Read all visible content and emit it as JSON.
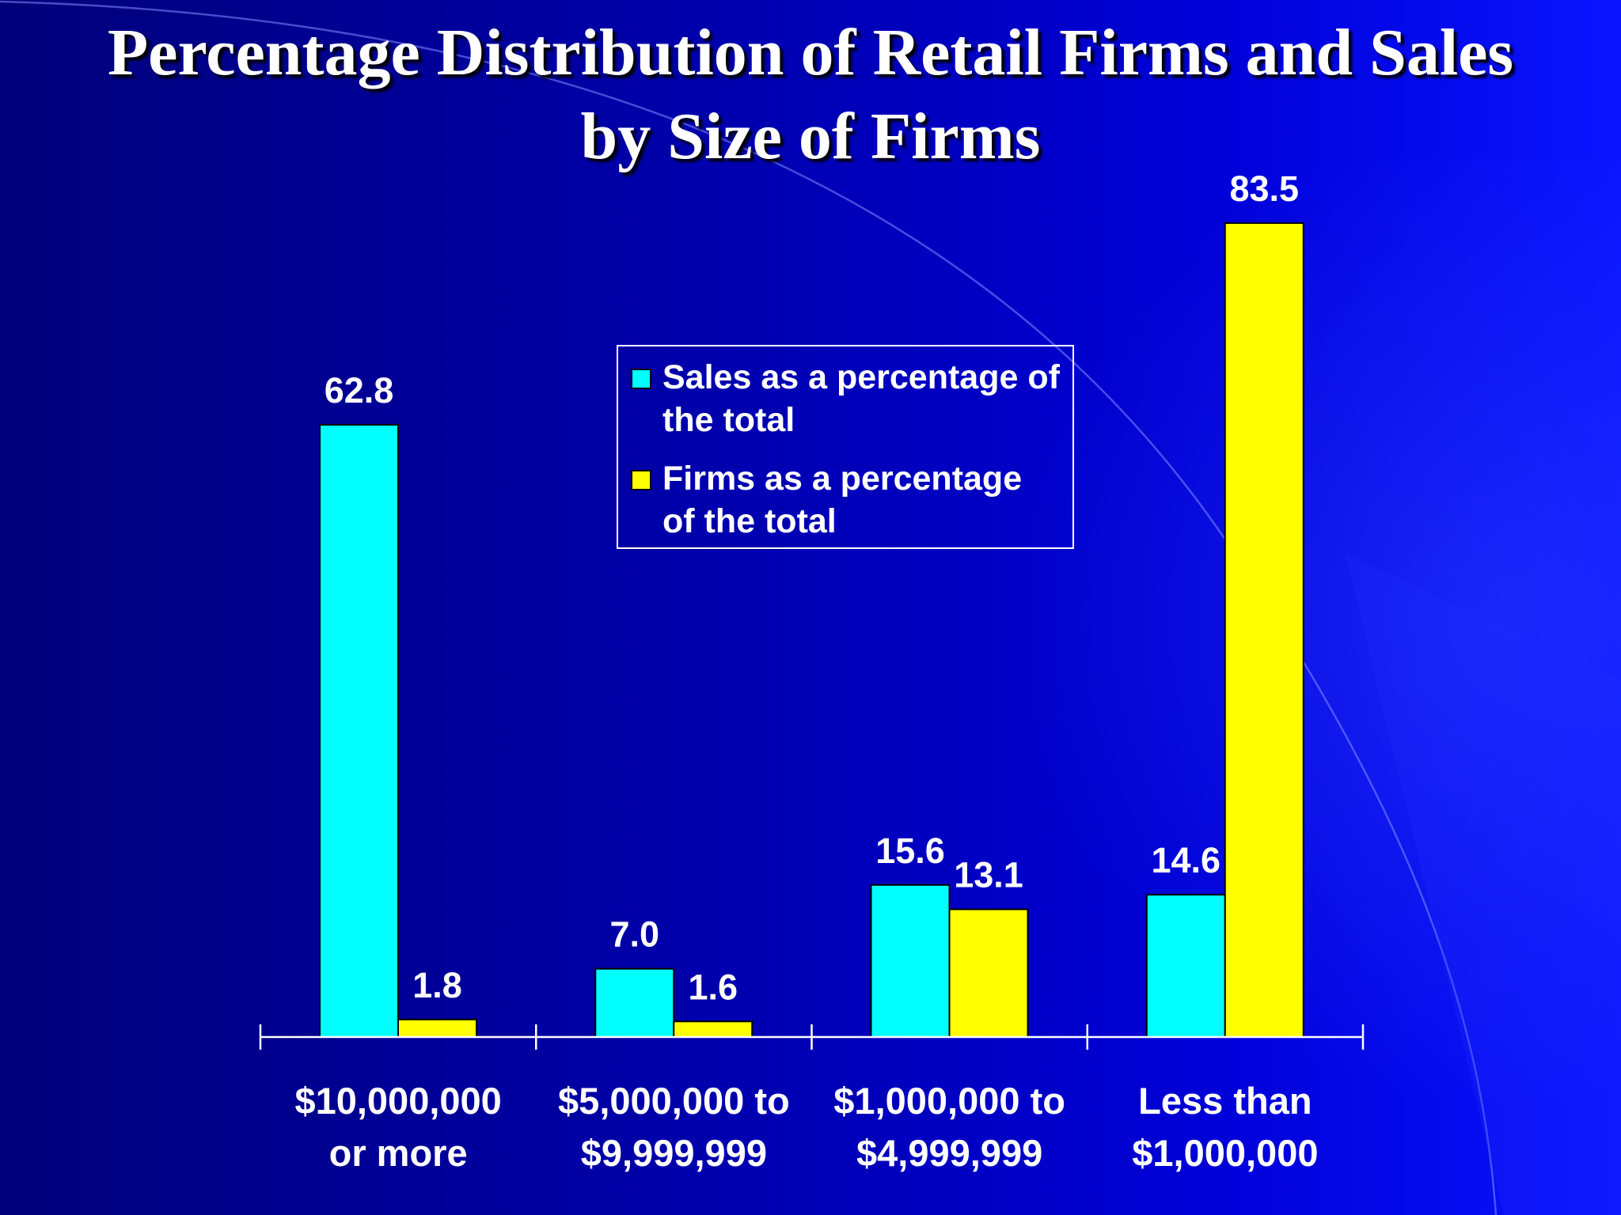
{
  "title": {
    "line1": "Percentage Distribution of Retail Firms and Sales",
    "line2": "by Size of Firms"
  },
  "colors": {
    "sales": "#00ffff",
    "firms": "#ffff00",
    "text": "#ffffff",
    "axis": "#ffffff"
  },
  "chart_data": {
    "type": "bar",
    "title": "Percentage Distribution of Retail Firms and Sales by Size of Firms",
    "xlabel": "",
    "ylabel": "",
    "ylim": [
      0,
      83.5
    ],
    "grid": false,
    "legend_position": "top-center",
    "categories": [
      [
        "$10,000,000",
        "or more"
      ],
      [
        "$5,000,000 to",
        "$9,999,999"
      ],
      [
        "$1,000,000 to",
        "$4,999,999"
      ],
      [
        "Less than",
        "$1,000,000"
      ]
    ],
    "series": [
      {
        "name": "Sales as a percentage of the total",
        "legend_lines": [
          "Sales as a percentage of",
          "the total"
        ],
        "color": "#00ffff",
        "values": [
          62.8,
          7.0,
          15.6,
          14.6
        ],
        "labels": [
          "62.8",
          "7.0",
          "15.6",
          "14.6"
        ]
      },
      {
        "name": "Firms as a percentage of the total",
        "legend_lines": [
          "Firms as a percentage",
          "of the total"
        ],
        "color": "#ffff00",
        "values": [
          1.8,
          1.6,
          13.1,
          83.5
        ],
        "labels": [
          "1.8",
          "1.6",
          "13.1",
          "83.5"
        ]
      }
    ]
  }
}
